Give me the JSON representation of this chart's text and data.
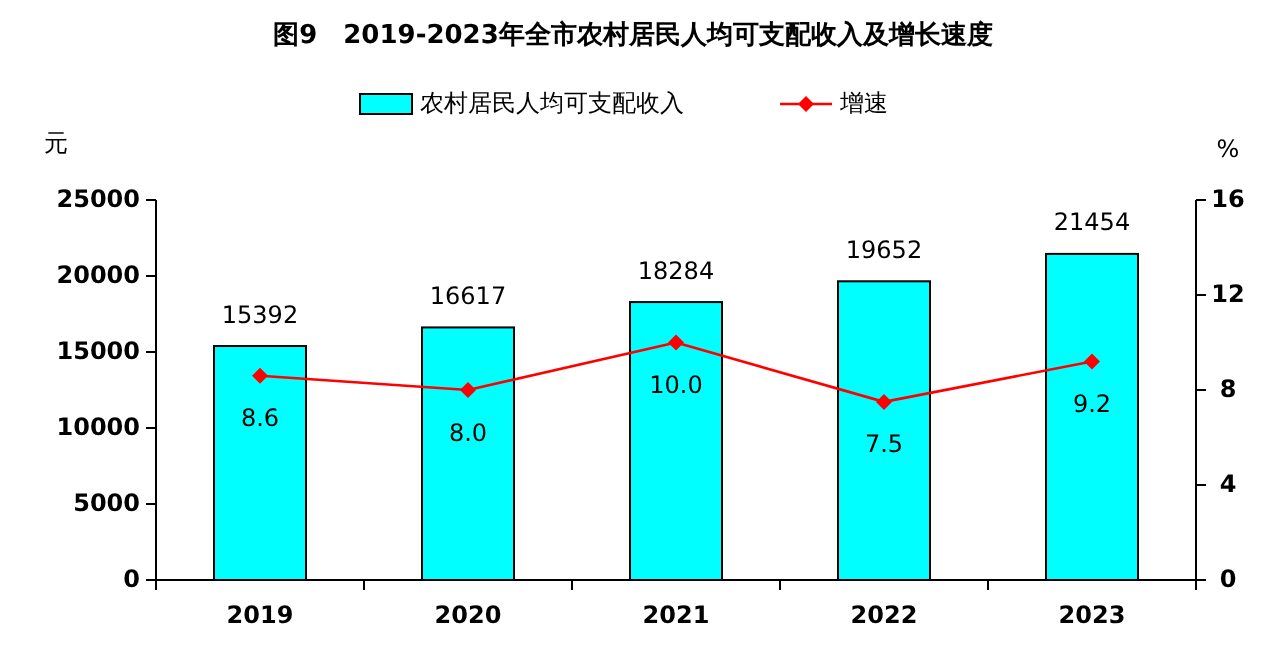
{
  "chart_data": {
    "type": "bar",
    "title": "图9　2019-2023年全市农村居民人均可支配收入及增长速度",
    "categories": [
      "2019",
      "2020",
      "2021",
      "2022",
      "2023"
    ],
    "series": [
      {
        "name": "农村居民人均可支配收入",
        "color": "#00ffff",
        "values": [
          15392,
          16617,
          18284,
          19652,
          21454
        ]
      },
      {
        "name": "增速",
        "type": "line",
        "color": "#ff0000",
        "axis": "y2",
        "values": [
          8.6,
          8.0,
          10.0,
          7.5,
          9.2
        ],
        "value_labels": [
          "8.6",
          "8.0",
          "10.0",
          "7.5",
          "9.2"
        ]
      }
    ],
    "ylabel": "元",
    "y2label": "%",
    "ylim": [
      0,
      25000
    ],
    "yticks": [
      0,
      5000,
      10000,
      15000,
      20000,
      25000
    ],
    "y2lim": [
      0,
      16
    ],
    "y2ticks": [
      0,
      4,
      8,
      12,
      16
    ],
    "marker": "diamond",
    "data_labels": true,
    "legend": "top",
    "grid": false
  }
}
